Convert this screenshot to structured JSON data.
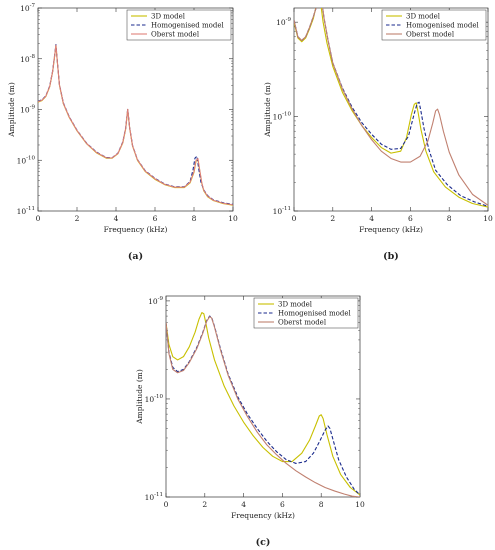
{
  "chart_data": [
    {
      "type": "line",
      "panel_label": "(a)",
      "xlabel": "Frequency (kHz)",
      "ylabel": "Amplitude (m)",
      "xlim": [
        0,
        10
      ],
      "ylim_log10": [
        -11,
        -7
      ],
      "y_scale": "log",
      "x_ticks": [
        "0",
        "2",
        "4",
        "6",
        "8",
        "10"
      ],
      "y_ticks": [
        {
          "base": "10",
          "exp": "-11"
        },
        {
          "base": "10",
          "exp": "-10"
        },
        {
          "base": "10",
          "exp": "-9"
        },
        {
          "base": "10",
          "exp": "-8"
        },
        {
          "base": "10",
          "exp": "-7"
        }
      ],
      "legend_position": "top-right",
      "series": [
        {
          "name": "3D model",
          "color": "#c8c000",
          "dash": "solid",
          "x": [
            0,
            0.2,
            0.4,
            0.6,
            0.75,
            0.85,
            0.92,
            1.0,
            1.1,
            1.3,
            1.6,
            2.0,
            2.5,
            3.0,
            3.5,
            3.8,
            4.1,
            4.35,
            4.5,
            4.6,
            4.7,
            4.85,
            5.1,
            5.5,
            6.0,
            6.5,
            7.0,
            7.5,
            7.8,
            8.0,
            8.1,
            8.2,
            8.3,
            8.4,
            8.5,
            8.7,
            9.0,
            9.5,
            10
          ],
          "y": [
            1.4e-09,
            1.5e-09,
            1.8e-09,
            2.8e-09,
            5.5e-09,
            1.1e-08,
            1.8e-08,
            8e-09,
            3e-09,
            1.3e-09,
            7e-10,
            3.8e-10,
            2.1e-10,
            1.4e-10,
            1.1e-10,
            1.1e-10,
            1.35e-10,
            2.2e-10,
            4.2e-10,
            1e-09,
            4.3e-10,
            1.9e-10,
            1e-10,
            6e-11,
            4.2e-11,
            3.3e-11,
            2.9e-11,
            2.9e-11,
            3.6e-11,
            5.8e-11,
            9.5e-11,
            1.05e-10,
            6e-11,
            3.5e-11,
            2.5e-11,
            1.9e-11,
            1.6e-11,
            1.4e-11,
            1.3e-11
          ]
        },
        {
          "name": "Homogenised model",
          "color": "#1a2a8c",
          "dash": "dashed",
          "x": [
            0,
            0.2,
            0.4,
            0.6,
            0.75,
            0.85,
            0.92,
            1.0,
            1.1,
            1.3,
            1.6,
            2.0,
            2.5,
            3.0,
            3.5,
            3.8,
            4.1,
            4.35,
            4.5,
            4.6,
            4.7,
            4.85,
            5.1,
            5.5,
            6.0,
            6.5,
            7.0,
            7.5,
            7.8,
            7.95,
            8.05,
            8.15,
            8.25,
            8.35,
            8.5,
            8.7,
            9.0,
            9.5,
            10
          ],
          "y": [
            1.45e-09,
            1.55e-09,
            1.85e-09,
            2.9e-09,
            5.7e-09,
            1.15e-08,
            1.9e-08,
            8.3e-09,
            3.1e-09,
            1.35e-09,
            7.2e-10,
            3.9e-10,
            2.15e-10,
            1.45e-10,
            1.13e-10,
            1.12e-10,
            1.38e-10,
            2.3e-10,
            4.4e-10,
            1.02e-09,
            4.4e-10,
            1.95e-10,
            1.03e-10,
            6.2e-11,
            4.4e-11,
            3.4e-11,
            3e-11,
            3e-11,
            3.8e-11,
            6.5e-11,
            1.1e-10,
            1.2e-10,
            6.5e-11,
            3.8e-11,
            2.6e-11,
            2e-11,
            1.65e-11,
            1.45e-11,
            1.35e-11
          ]
        },
        {
          "name": "Oberst model",
          "color": "#e0807a",
          "dash": "solid",
          "x": [
            0,
            0.2,
            0.4,
            0.6,
            0.75,
            0.85,
            0.92,
            1.0,
            1.1,
            1.3,
            1.6,
            2.0,
            2.5,
            3.0,
            3.5,
            3.8,
            4.1,
            4.35,
            4.5,
            4.6,
            4.7,
            4.85,
            5.1,
            5.5,
            6.0,
            6.5,
            7.0,
            7.5,
            7.8,
            8.0,
            8.1,
            8.2,
            8.3,
            8.4,
            8.5,
            8.7,
            9.0,
            9.5,
            10
          ],
          "y": [
            1.42e-09,
            1.52e-09,
            1.82e-09,
            2.85e-09,
            5.6e-09,
            1.12e-08,
            1.85e-08,
            8.1e-09,
            3.05e-09,
            1.32e-09,
            7.1e-10,
            3.85e-10,
            2.12e-10,
            1.42e-10,
            1.12e-10,
            1.11e-10,
            1.36e-10,
            2.25e-10,
            4.3e-10,
            1.01e-09,
            4.35e-10,
            1.92e-10,
            1.02e-10,
            6.1e-11,
            4.3e-11,
            3.35e-11,
            2.95e-11,
            2.95e-11,
            3.7e-11,
            6e-11,
            9.8e-11,
            1.08e-10,
            6.2e-11,
            3.6e-11,
            2.55e-11,
            1.95e-11,
            1.62e-11,
            1.42e-11,
            1.32e-11
          ]
        }
      ]
    },
    {
      "type": "line",
      "panel_label": "(b)",
      "xlabel": "Frequency (kHz)",
      "ylabel": "Amplitude (m)",
      "xlim": [
        0,
        10
      ],
      "ylim_log10": [
        -11,
        -8.85
      ],
      "y_scale": "log",
      "x_ticks": [
        "0",
        "2",
        "4",
        "6",
        "8",
        "10"
      ],
      "y_ticks": [
        {
          "base": "10",
          "exp": "-11"
        },
        {
          "base": "10",
          "exp": "-10"
        },
        {
          "base": "10",
          "exp": "-9"
        }
      ],
      "legend_position": "top-right",
      "series": [
        {
          "name": "3D model",
          "color": "#c8c000",
          "dash": "solid",
          "x": [
            0,
            0.2,
            0.4,
            0.6,
            0.8,
            1.0,
            1.15,
            1.3,
            1.4,
            1.5,
            1.7,
            2.0,
            2.5,
            3.0,
            3.5,
            4.0,
            4.5,
            5.0,
            5.5,
            5.8,
            6.05,
            6.2,
            6.3,
            6.4,
            6.55,
            6.8,
            7.2,
            7.8,
            8.5,
            9.2,
            10
          ],
          "y": [
            1e-09,
            6.8e-10,
            6.2e-10,
            6.8e-10,
            8.5e-10,
            1.1e-09,
            1.5e-09,
            1.75e-09,
            1.45e-09,
            1e-09,
            6e-10,
            3.4e-10,
            1.8e-10,
            1.15e-10,
            8e-11,
            6e-11,
            4.7e-11,
            4.1e-11,
            4.3e-11,
            6e-11,
            1.05e-10,
            1.35e-10,
            1.4e-10,
            1.1e-10,
            7.2e-11,
            4.3e-11,
            2.6e-11,
            1.8e-11,
            1.4e-11,
            1.2e-11,
            1.1e-11
          ]
        },
        {
          "name": "Homogenised model",
          "color": "#1a2a8c",
          "dash": "dashed",
          "x": [
            0,
            0.2,
            0.4,
            0.6,
            0.8,
            1.0,
            1.2,
            1.35,
            1.45,
            1.55,
            1.75,
            2.0,
            2.5,
            3.0,
            3.5,
            4.0,
            4.5,
            5.0,
            5.5,
            5.9,
            6.2,
            6.35,
            6.45,
            6.55,
            6.7,
            6.95,
            7.3,
            7.9,
            8.6,
            9.3,
            10
          ],
          "y": [
            1.05e-09,
            7e-10,
            6.4e-10,
            7e-10,
            8.8e-10,
            1.15e-09,
            1.55e-09,
            1.85e-09,
            1.55e-09,
            1.1e-09,
            6.5e-10,
            3.7e-10,
            2e-10,
            1.25e-10,
            8.6e-11,
            6.5e-11,
            5.1e-11,
            4.5e-11,
            4.6e-11,
            6.2e-11,
            1.08e-10,
            1.38e-10,
            1.42e-10,
            1.12e-10,
            7.5e-11,
            4.5e-11,
            2.7e-11,
            1.9e-11,
            1.45e-11,
            1.25e-11,
            1.12e-11
          ]
        },
        {
          "name": "Oberst model",
          "color": "#c08070",
          "dash": "solid",
          "x": [
            0,
            0.2,
            0.4,
            0.6,
            0.8,
            1.0,
            1.2,
            1.35,
            1.45,
            1.55,
            1.75,
            2.0,
            2.5,
            3.0,
            3.5,
            4.0,
            4.5,
            5.0,
            5.5,
            6.0,
            6.5,
            6.9,
            7.15,
            7.3,
            7.4,
            7.5,
            7.7,
            8.0,
            8.5,
            9.2,
            10
          ],
          "y": [
            1.05e-09,
            7e-10,
            6.4e-10,
            7e-10,
            8.8e-10,
            1.15e-09,
            1.55e-09,
            1.85e-09,
            1.55e-09,
            1.1e-09,
            6.5e-10,
            3.7e-10,
            1.95e-10,
            1.2e-10,
            8e-11,
            5.7e-11,
            4.3e-11,
            3.6e-11,
            3.3e-11,
            3.3e-11,
            3.8e-11,
            5.5e-11,
            8.5e-11,
            1.15e-10,
            1.2e-10,
            1.05e-10,
            7e-11,
            4.2e-11,
            2.4e-11,
            1.5e-11,
            1.15e-11
          ]
        }
      ]
    },
    {
      "type": "line",
      "panel_label": "(c)",
      "xlabel": "Frequency (kHz)",
      "ylabel": "Amplitude (m)",
      "xlim": [
        0,
        10
      ],
      "ylim_log10": [
        -11,
        -8.95
      ],
      "y_scale": "log",
      "x_ticks": [
        "0",
        "2",
        "4",
        "6",
        "8",
        "10"
      ],
      "y_ticks": [
        {
          "base": "10",
          "exp": "-11"
        },
        {
          "base": "10",
          "exp": "-10"
        },
        {
          "base": "10",
          "exp": "-9"
        }
      ],
      "legend_position": "top-right",
      "series": [
        {
          "name": "3D model",
          "color": "#c8c000",
          "dash": "solid",
          "x": [
            0,
            0.15,
            0.35,
            0.6,
            0.9,
            1.2,
            1.5,
            1.7,
            1.85,
            1.95,
            2.05,
            2.2,
            2.5,
            3.0,
            3.5,
            4.0,
            4.5,
            5.0,
            5.5,
            6.0,
            6.5,
            7.0,
            7.4,
            7.7,
            7.9,
            8.0,
            8.1,
            8.3,
            8.6,
            9.0,
            9.5,
            10
          ],
          "y": [
            6e-10,
            3.6e-10,
            2.7e-10,
            2.5e-10,
            2.7e-10,
            3.4e-10,
            4.8e-10,
            6.5e-10,
            7.6e-10,
            7.4e-10,
            6e-10,
            4.2e-10,
            2.5e-10,
            1.35e-10,
            8.5e-11,
            5.8e-11,
            4.2e-11,
            3.2e-11,
            2.6e-11,
            2.3e-11,
            2.3e-11,
            2.8e-11,
            3.8e-11,
            5.3e-11,
            6.7e-11,
            6.9e-11,
            6.3e-11,
            4.3e-11,
            2.6e-11,
            1.7e-11,
            1.25e-11,
            1.05e-11
          ]
        },
        {
          "name": "Homogenised model",
          "color": "#1a2a8c",
          "dash": "dashed",
          "x": [
            0,
            0.15,
            0.35,
            0.6,
            0.9,
            1.2,
            1.6,
            1.9,
            2.1,
            2.25,
            2.35,
            2.5,
            2.8,
            3.2,
            3.7,
            4.2,
            4.7,
            5.2,
            5.7,
            6.2,
            6.7,
            7.2,
            7.6,
            7.95,
            8.2,
            8.35,
            8.45,
            8.65,
            8.9,
            9.3,
            9.7,
            10
          ],
          "y": [
            6e-10,
            3e-10,
            2.1e-10,
            1.9e-10,
            2e-10,
            2.4e-10,
            3.4e-10,
            4.8e-10,
            6.3e-10,
            7e-10,
            6.8e-10,
            5.5e-10,
            3.3e-10,
            1.8e-10,
            1.05e-10,
            7e-11,
            5e-11,
            3.7e-11,
            2.9e-11,
            2.4e-11,
            2.2e-11,
            2.3e-11,
            2.8e-11,
            3.8e-11,
            4.8e-11,
            5.3e-11,
            5e-11,
            3.6e-11,
            2.4e-11,
            1.6e-11,
            1.2e-11,
            1.05e-11
          ]
        },
        {
          "name": "Oberst model",
          "color": "#c08070",
          "dash": "solid",
          "x": [
            0,
            0.15,
            0.35,
            0.6,
            0.9,
            1.2,
            1.6,
            1.9,
            2.1,
            2.25,
            2.35,
            2.5,
            2.8,
            3.2,
            3.7,
            4.2,
            4.7,
            5.2,
            5.7,
            6.2,
            6.7,
            7.2,
            7.7,
            8.2,
            8.7,
            9.2,
            9.6,
            10
          ],
          "y": [
            6e-10,
            2.9e-10,
            2e-10,
            1.85e-10,
            1.95e-10,
            2.35e-10,
            3.3e-10,
            4.7e-10,
            6.2e-10,
            6.9e-10,
            6.7e-10,
            5.4e-10,
            3.2e-10,
            1.75e-10,
            1e-10,
            6.6e-11,
            4.6e-11,
            3.4e-11,
            2.7e-11,
            2.2e-11,
            1.85e-11,
            1.6e-11,
            1.4e-11,
            1.25e-11,
            1.15e-11,
            1.07e-11,
            1.02e-11,
            1e-11
          ]
        }
      ]
    }
  ]
}
